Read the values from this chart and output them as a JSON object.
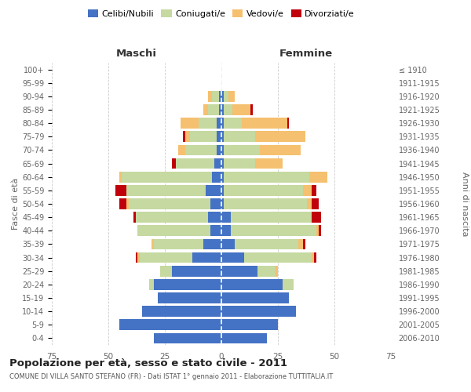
{
  "age_groups": [
    "0-4",
    "5-9",
    "10-14",
    "15-19",
    "20-24",
    "25-29",
    "30-34",
    "35-39",
    "40-44",
    "45-49",
    "50-54",
    "55-59",
    "60-64",
    "65-69",
    "70-74",
    "75-79",
    "80-84",
    "85-89",
    "90-94",
    "95-99",
    "100+"
  ],
  "birth_years": [
    "2006-2010",
    "2001-2005",
    "1996-2000",
    "1991-1995",
    "1986-1990",
    "1981-1985",
    "1976-1980",
    "1971-1975",
    "1966-1970",
    "1961-1965",
    "1956-1960",
    "1951-1955",
    "1946-1950",
    "1941-1945",
    "1936-1940",
    "1931-1935",
    "1926-1930",
    "1921-1925",
    "1916-1920",
    "1911-1915",
    "≤ 1910"
  ],
  "male": {
    "celibi": [
      30,
      45,
      35,
      28,
      30,
      22,
      13,
      8,
      5,
      6,
      5,
      7,
      4,
      3,
      2,
      2,
      2,
      1,
      1,
      0,
      0
    ],
    "coniugati": [
      0,
      0,
      0,
      0,
      2,
      5,
      23,
      22,
      32,
      32,
      36,
      35,
      40,
      17,
      14,
      12,
      8,
      5,
      3,
      0,
      0
    ],
    "vedovi": [
      0,
      0,
      0,
      0,
      0,
      0,
      1,
      1,
      0,
      0,
      1,
      0,
      1,
      0,
      3,
      2,
      8,
      2,
      2,
      0,
      0
    ],
    "divorziati": [
      0,
      0,
      0,
      0,
      0,
      0,
      1,
      0,
      0,
      1,
      3,
      5,
      0,
      2,
      0,
      1,
      0,
      0,
      0,
      0,
      0
    ]
  },
  "female": {
    "nubili": [
      20,
      25,
      33,
      30,
      27,
      16,
      10,
      6,
      4,
      4,
      1,
      1,
      1,
      1,
      1,
      1,
      1,
      1,
      1,
      0,
      0
    ],
    "coniugate": [
      0,
      0,
      0,
      0,
      5,
      8,
      30,
      28,
      38,
      36,
      37,
      35,
      38,
      14,
      16,
      14,
      8,
      4,
      2,
      0,
      0
    ],
    "vedove": [
      0,
      0,
      0,
      0,
      0,
      1,
      1,
      2,
      1,
      0,
      2,
      4,
      8,
      12,
      18,
      22,
      20,
      8,
      3,
      0,
      0
    ],
    "divorziate": [
      0,
      0,
      0,
      0,
      0,
      0,
      1,
      1,
      1,
      4,
      3,
      2,
      0,
      0,
      0,
      0,
      1,
      1,
      0,
      0,
      0
    ]
  },
  "colors": {
    "celibi_nubili": "#4472c4",
    "coniugati_e": "#c5d9a0",
    "vedovi_e": "#f5c06f",
    "divorziati_e": "#c0000b"
  },
  "title": "Popolazione per età, sesso e stato civile - 2011",
  "subtitle": "COMUNE DI VILLA SANTO STEFANO (FR) - Dati ISTAT 1° gennaio 2011 - Elaborazione TUTTITALIA.IT",
  "xlabel_left": "Maschi",
  "xlabel_right": "Femmine",
  "ylabel_left": "Fasce di età",
  "ylabel_right": "Anni di nascita",
  "xlim": 75,
  "background_color": "#ffffff",
  "grid_color": "#cccccc"
}
